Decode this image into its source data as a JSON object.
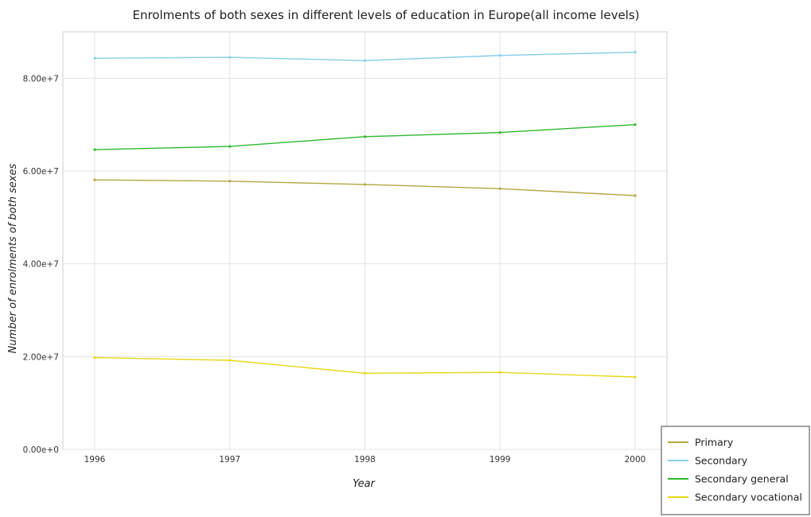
{
  "chart_data": {
    "type": "line",
    "title": "Enrolments of both sexes in different levels of education in Europe(all income levels)",
    "xlabel": "Year",
    "ylabel": "Number of enrolments of both sexes",
    "x": [
      "1996",
      "1997",
      "1998",
      "1999",
      "2000"
    ],
    "yticks": [
      "0.00e+0",
      "2.00e+7",
      "4.00e+7",
      "6.00e+7",
      "8.00e+7"
    ],
    "ylim": [
      0,
      90000000
    ],
    "grid": true,
    "legend_position": "bottom-right",
    "series": [
      {
        "name": "Primary",
        "color": "#b5a642",
        "values": [
          58100000,
          57800000,
          57100000,
          56200000,
          54700000
        ]
      },
      {
        "name": "Secondary",
        "color": "#87ceeb",
        "values": [
          84300000,
          84500000,
          83800000,
          84900000,
          85600000
        ]
      },
      {
        "name": "Secondary general",
        "color": "#2db82d",
        "values": [
          64600000,
          65300000,
          67400000,
          68300000,
          70000000
        ]
      },
      {
        "name": "Secondary vocational",
        "color": "#e8d817",
        "values": [
          19800000,
          19200000,
          16400000,
          16600000,
          15600000
        ]
      }
    ]
  }
}
